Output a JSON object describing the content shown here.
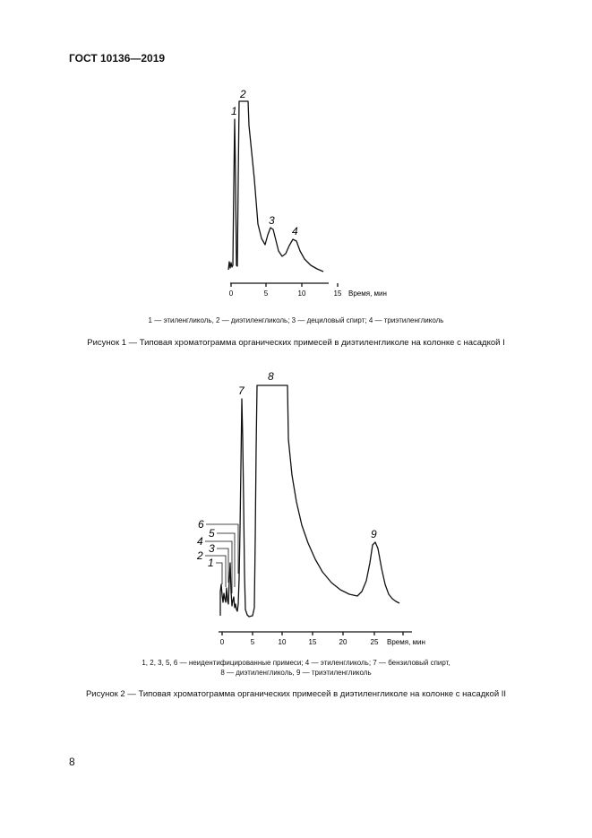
{
  "header": {
    "standard": "ГОСТ 10136—2019"
  },
  "figure1": {
    "title": "Рисунок 1 — Типовая хроматограмма органических примесей в диэтиленгликоле на колонке с насадкой I",
    "caption": "1 — этиленгликоль, 2 — диэтиленгликоль; 3 — дециловый спирт; 4 — триэтиленгликоль",
    "axis_label": "Время, мин",
    "ticks": [
      "0",
      "5",
      "10",
      "15"
    ],
    "peak_labels": [
      "1",
      "2",
      "3",
      "4"
    ]
  },
  "figure2": {
    "title": "Рисунок 2 — Типовая хроматограмма органических примесей в диэтиленгликоле на колонке с насадкой II",
    "caption_line1": "1, 2, 3, 5, 6 — неидентифицированные примеси; 4 — этиленгликоль; 7 — бензиловый спирт,",
    "caption_line2": "8 — диэтиленгликоль, 9 — триэтиленгликоль",
    "axis_label": "Время, мин",
    "ticks": [
      "0",
      "5",
      "10",
      "15",
      "20",
      "25"
    ],
    "peak_labels": [
      "1",
      "2",
      "3",
      "4",
      "5",
      "6",
      "7",
      "8",
      "9"
    ]
  },
  "footer": {
    "page_number": "8"
  }
}
